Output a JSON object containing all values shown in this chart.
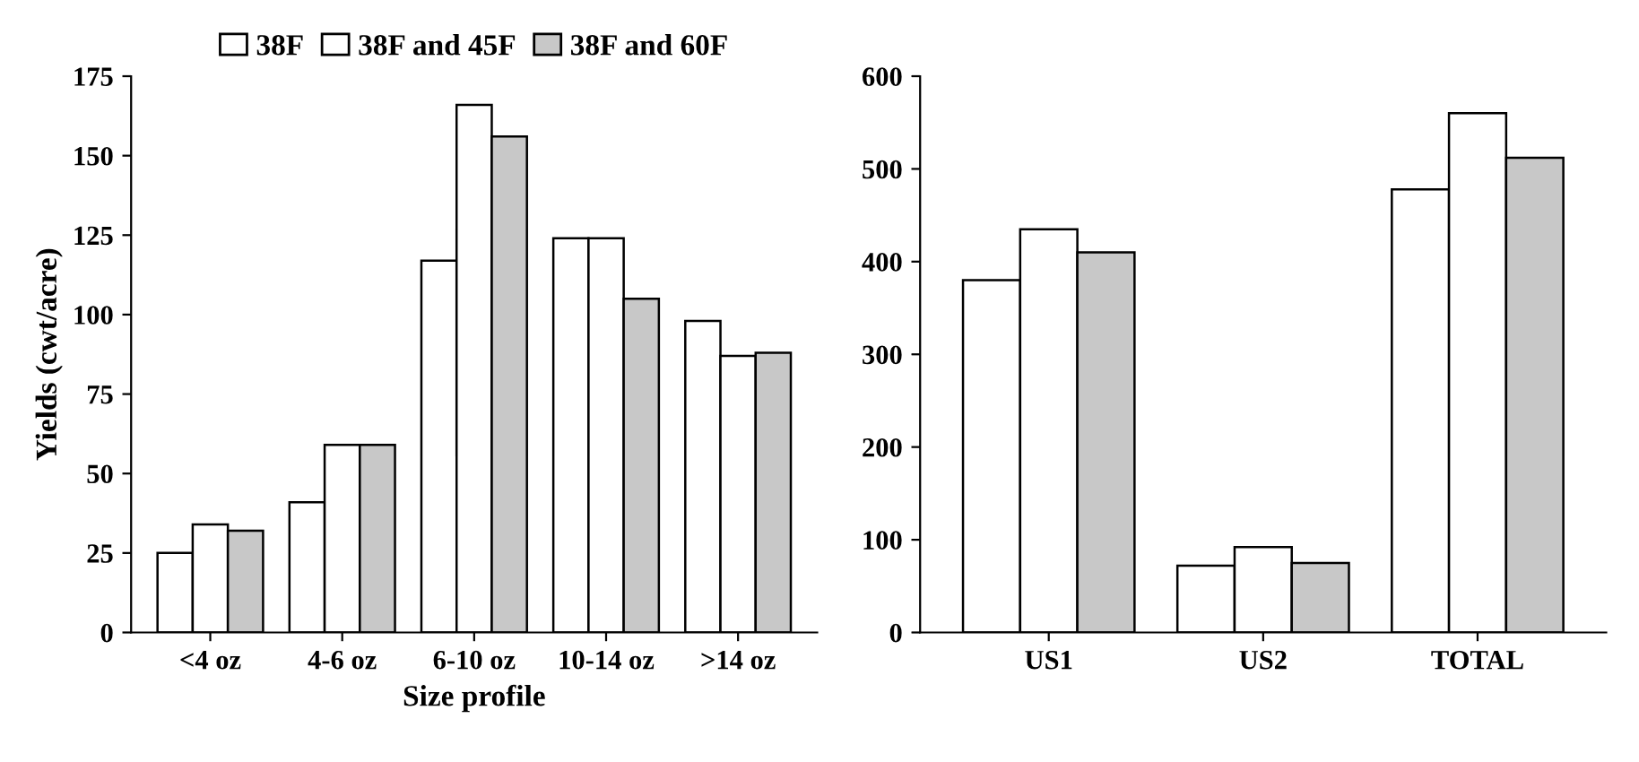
{
  "chart_data": [
    {
      "type": "bar",
      "xlabel": "Size profile",
      "ylabel": "Yields (cwt/acre)",
      "categories": [
        "<4 oz",
        "4-6 oz",
        "6-10 oz",
        "10-14 oz",
        ">14 oz"
      ],
      "series": [
        {
          "name": "38F",
          "color": "#ffffff",
          "values": [
            25,
            41,
            117,
            124,
            98
          ]
        },
        {
          "name": "38F and 45F",
          "color": "#ffffff",
          "values": [
            34,
            59,
            166,
            124,
            87
          ]
        },
        {
          "name": "38F and 60F",
          "color": "#c8c8c8",
          "values": [
            32,
            59,
            156,
            105,
            88
          ]
        }
      ],
      "ylim": [
        0,
        175
      ],
      "yticks": [
        0,
        25,
        50,
        75,
        100,
        125,
        150,
        175
      ],
      "legend": "top",
      "grid": false
    },
    {
      "type": "bar",
      "categories": [
        "US1",
        "US2",
        "TOTAL"
      ],
      "series": [
        {
          "color": "#ffffff",
          "values": [
            380,
            72,
            478
          ]
        },
        {
          "color": "#ffffff",
          "values": [
            435,
            92,
            560
          ]
        },
        {
          "color": "#c8c8c8",
          "values": [
            410,
            75,
            512
          ]
        }
      ],
      "ylim": [
        0,
        600
      ],
      "yticks": [
        0,
        100,
        200,
        300,
        400,
        500,
        600
      ],
      "grid": false
    }
  ]
}
